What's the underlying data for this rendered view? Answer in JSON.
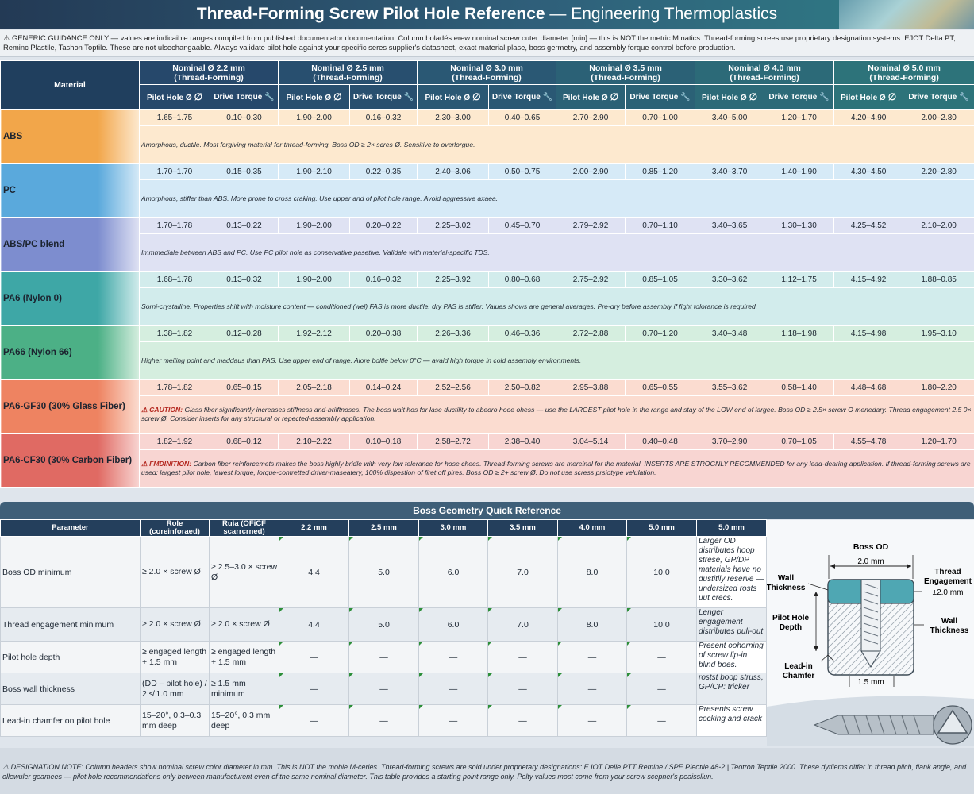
{
  "title": {
    "bold": "Thread-Forming Screw Pilot Hole Reference",
    "rest": " — Engineering Thermoplastics"
  },
  "disclaimer": "⚠ GENERIC GUIDANCE ONLY — values are indicaible ranges compiled from published documentator documentation. Column boladés erew nominal screw cuter diameter [min] — this is NOT the metric M natics. Thread-forming screes use proprietary designation systems. EJOT Delta PT, Reminc Plastile, Tashon Toptile. These are not ulsechangaable. Always validate pilot hole against your specific seres supplier's datasheet, exact material plase, boss germetry, and assembly forque control before production.",
  "table": {
    "material_header": "Material",
    "groups": [
      {
        "line1": "Nominal Ø 2.2 mm",
        "line2": "(Thread-Forming)"
      },
      {
        "line1": "Nominal Ø 2.5 mm",
        "line2": "(Thread-Forming)"
      },
      {
        "line1": "Nominal Ø 3.0 mm",
        "line2": "(Thread-Forming)"
      },
      {
        "line1": "Nominal Ø 3.5 mm",
        "line2": "(Thread-Forming)"
      },
      {
        "line1": "Nominal Ø 4.0 mm",
        "line2": "(Thread-Forming)"
      },
      {
        "line1": "Nominal Ø 5.0 mm",
        "line2": "(Thread-Forming)"
      }
    ],
    "sub_pilot": "Pilot Hole Ø",
    "sub_torque": "Drive Torque",
    "rows": [
      {
        "name": "ABS",
        "color": "#f2a64a",
        "light": "#fde9cf",
        "vals": [
          "1.65–1.75",
          "0.10–0.30",
          "1.90–2.00",
          "0.16–0.32",
          "2.30–3.00",
          "0.40–0.65",
          "2.70–2.90",
          "0.70–1.00",
          "3.40–5.00",
          "1.20–1.70",
          "4.20–4.90",
          "2.00–2.80"
        ],
        "note": "Amorphous, ductile. Most forgiving material for thread-forming. Boss OD ≥ 2× scres Ø. Sensitive to overlorgue."
      },
      {
        "name": "PC",
        "color": "#5aa9dc",
        "light": "#d6eaf7",
        "vals": [
          "1.70–1.70",
          "0.15–0.35",
          "1.90–2.10",
          "0.22–0.35",
          "2.40–3.06",
          "0.50–0.75",
          "2.00–2.90",
          "0.85–1.20",
          "3.40–3.70",
          "1.40–1.90",
          "4.30–4.50",
          "2.20–2.80"
        ],
        "note": "Amorphous, stiffer than ABS. More prone to cross craking. Use upper and of pilot hole range. Avoid aggressive axaea."
      },
      {
        "name": "ABS/PC blend",
        "color": "#7d8dcf",
        "light": "#dfe2f3",
        "vals": [
          "1.70–1.78",
          "0.13–0.22",
          "1.90–2.00",
          "0.20–0.22",
          "2.25–3.02",
          "0.45–0.70",
          "2.79–2.92",
          "0.70–1.10",
          "3.40–3.65",
          "1.30–1.30",
          "4.25–4.52",
          "2.10–2.00"
        ],
        "note": "Immmediale between ABS and PC. Use PC pilot hole as conservative pasetive. Validale with material-specific TDS."
      },
      {
        "name": "PA6 (Nylon 0)",
        "color": "#3ea7a6",
        "light": "#d2ecec",
        "vals": [
          "1.68–1.78",
          "0.13–0.32",
          "1.90–2.00",
          "0.16–0.32",
          "2.25–3.92",
          "0.80–0.68",
          "2.75–2.92",
          "0.85–1.05",
          "3.30–3.62",
          "1.12–1.75",
          "4.15–4.92",
          "1.88–0.85"
        ],
        "note": "Sorni-crystalline. Properties shift with moisture content — conditioned (wel) FAS is more ductile. dry PAS is stiffer. Values shows are general averages. Pre-dry before assembly if fight tolorance is required."
      },
      {
        "name": "PA66 (Nylon 66)",
        "color": "#4cb086",
        "light": "#d5eedf",
        "vals": [
          "1.38–1.82",
          "0.12–0.28",
          "1.92–2.12",
          "0.20–0.38",
          "2.26–3.36",
          "0.46–0.36",
          "2.72–2.88",
          "0.70–1.20",
          "3.40–3.48",
          "1.18–1.98",
          "4.15–4.98",
          "1.95–3.10"
        ],
        "note": "Higher meiling point and maddaus than PAS. Use upper end of range. Alore boltle below 0°C — avaid high torque in cold assembly environments."
      },
      {
        "name": "PA6-GF30 (30% Glass Fiber)",
        "color": "#ee8361",
        "light": "#fbdcd0",
        "vals": [
          "1.78–1.82",
          "0.65–0.15",
          "2.05–2.18",
          "0.14–0.24",
          "2.52–2.56",
          "2.50–0.82",
          "2.95–3.88",
          "0.65–0.55",
          "3.55–3.62",
          "0.58–1.40",
          "4.48–4.68",
          "1.80–2.20"
        ],
        "note_label": "⚠ CAUTION:",
        "note": " Glass fiber significantly increases stiffness and-brilftnoses. The boss wait hos for lase ductility to abeoro hooe ohess — use the LARGEST pilot hole in the range and stay of the LOW end of largee. Boss OD ≥ 2.5× screw O menedary. Thread engagement 2.5 0× screw Ø. Consider inserts for any structural or repected-assembly application."
      },
      {
        "name": "PA6-CF30 (30% Carbon Fiber)",
        "color": "#e06a63",
        "light": "#f8d5d2",
        "vals": [
          "1.82–1.92",
          "0.68–0.12",
          "2.10–2.22",
          "0.10–0.18",
          "2.58–2.72",
          "2.38–0.40",
          "3.04–5.14",
          "0.40–0.48",
          "3.70–2.90",
          "0.70–1.05",
          "4.55–4.78",
          "1.20–1.70"
        ],
        "note_label": "⚠ FMDINITION:",
        "note": " Carbon fiber reinforcemets makes the boss highly bridle with very low telerance for hose chees. Thread-forming screws are mereinal for the material. INSERTS ARE STROGNLY RECOMMENDED for any lead-dearing application. If thread-forming screws are used: largest pilot hole, lawest lorque, lorque-contretted driver-maseatery, 100% dispestion of firet off pires. Boss OD ≥ 2+ screw Ø. Do not use scress prsiotype velulation."
      }
    ]
  },
  "boss": {
    "title": "Boss Geometry Quick Reference",
    "headers": [
      "Parameter",
      "Role (coreinforaed)",
      "Ruia (OFiCF scarrcrned)",
      "2.2 mm",
      "2.5 mm",
      "3.0 mm",
      "3.5 mm",
      "4.0 mm",
      "5.0 mm",
      "5.0 mm"
    ],
    "rows": [
      {
        "param": "Boss OD minimum",
        "r1": "≥ 2.0 × screw Ø",
        "r2": "≥ 2.5–3.0 × screw Ø",
        "vals": [
          "4.4",
          "5.0",
          "6.0",
          "7.0",
          "8.0",
          "10.0"
        ],
        "note": "Larger OD distributes hoop strese, GP/DP materials have no dustitlly reserve — undersized rosts uut crecs."
      },
      {
        "param": "Thread engagement minimum",
        "r1": "≥ 2.0 × screw Ø",
        "r2": "≥ 2.0 × screw Ø",
        "vals": [
          "4.4",
          "5.0",
          "6.0",
          "7.0",
          "8.0",
          "10.0"
        ],
        "note": "Lenger engagement distributes pull-out"
      },
      {
        "param": "Pilot hole depth",
        "r1": "≥ engaged length + 1.5 mm",
        "r2": "≥ engaged length + 1.5 mm",
        "vals": [
          "—",
          "—",
          "—",
          "—",
          "—",
          "—"
        ],
        "note": "Present oohorning of screw lip-in blind boes."
      },
      {
        "param": "Boss wall thickness",
        "r1": "(DD – pilot hole) / 2 ≰ 1.0 mm",
        "r2": "≥ 1.5 mm minimum",
        "vals": [
          "—",
          "—",
          "—",
          "—",
          "—",
          "—"
        ],
        "note": "rostst boop struss, GP/CP: tricker"
      },
      {
        "param": "Lead-in chamfer on pilot hole",
        "r1": "15–20°, 0.3–0.3 mm deep",
        "r2": "15–20°, 0.3 mm deep",
        "vals": [
          "—",
          "—",
          "—",
          "—",
          "—",
          "—"
        ],
        "note": "Presents screw cocking and crack"
      }
    ]
  },
  "diagram": {
    "boss_od": "Boss OD",
    "od_value": "2.0 mm",
    "wall_thickness_left": "Wall Thickness",
    "thread_engagement": "Thread Engagement",
    "engagement_value": "±2.0 mm",
    "pilot_hole_depth": "Pilot Hole Depth",
    "wall_thickness_right": "Wall Thickness",
    "lead_in": "Lead-in Chamfer",
    "chamfer_value": "1.5 mm"
  },
  "bottom_note": "⚠ DESIGNATION NOTE: Column headers show nominal screw color diameter in mm. This is NOT the moble M-ceries. Thread-forming screws are sold under proprietary designations: E.IOT Delle PTT Remine / SPE Pleotile 48-2 | Teotron Teptile 2000. These dytilems differ in thread pilch, flank angle, and ollewuler geamees — pilot hole recommendations only between manufacturent even of the same nominal diameter. This table provides a starting point range only. Polty values most come from your screw scepner's peaissliun."
}
